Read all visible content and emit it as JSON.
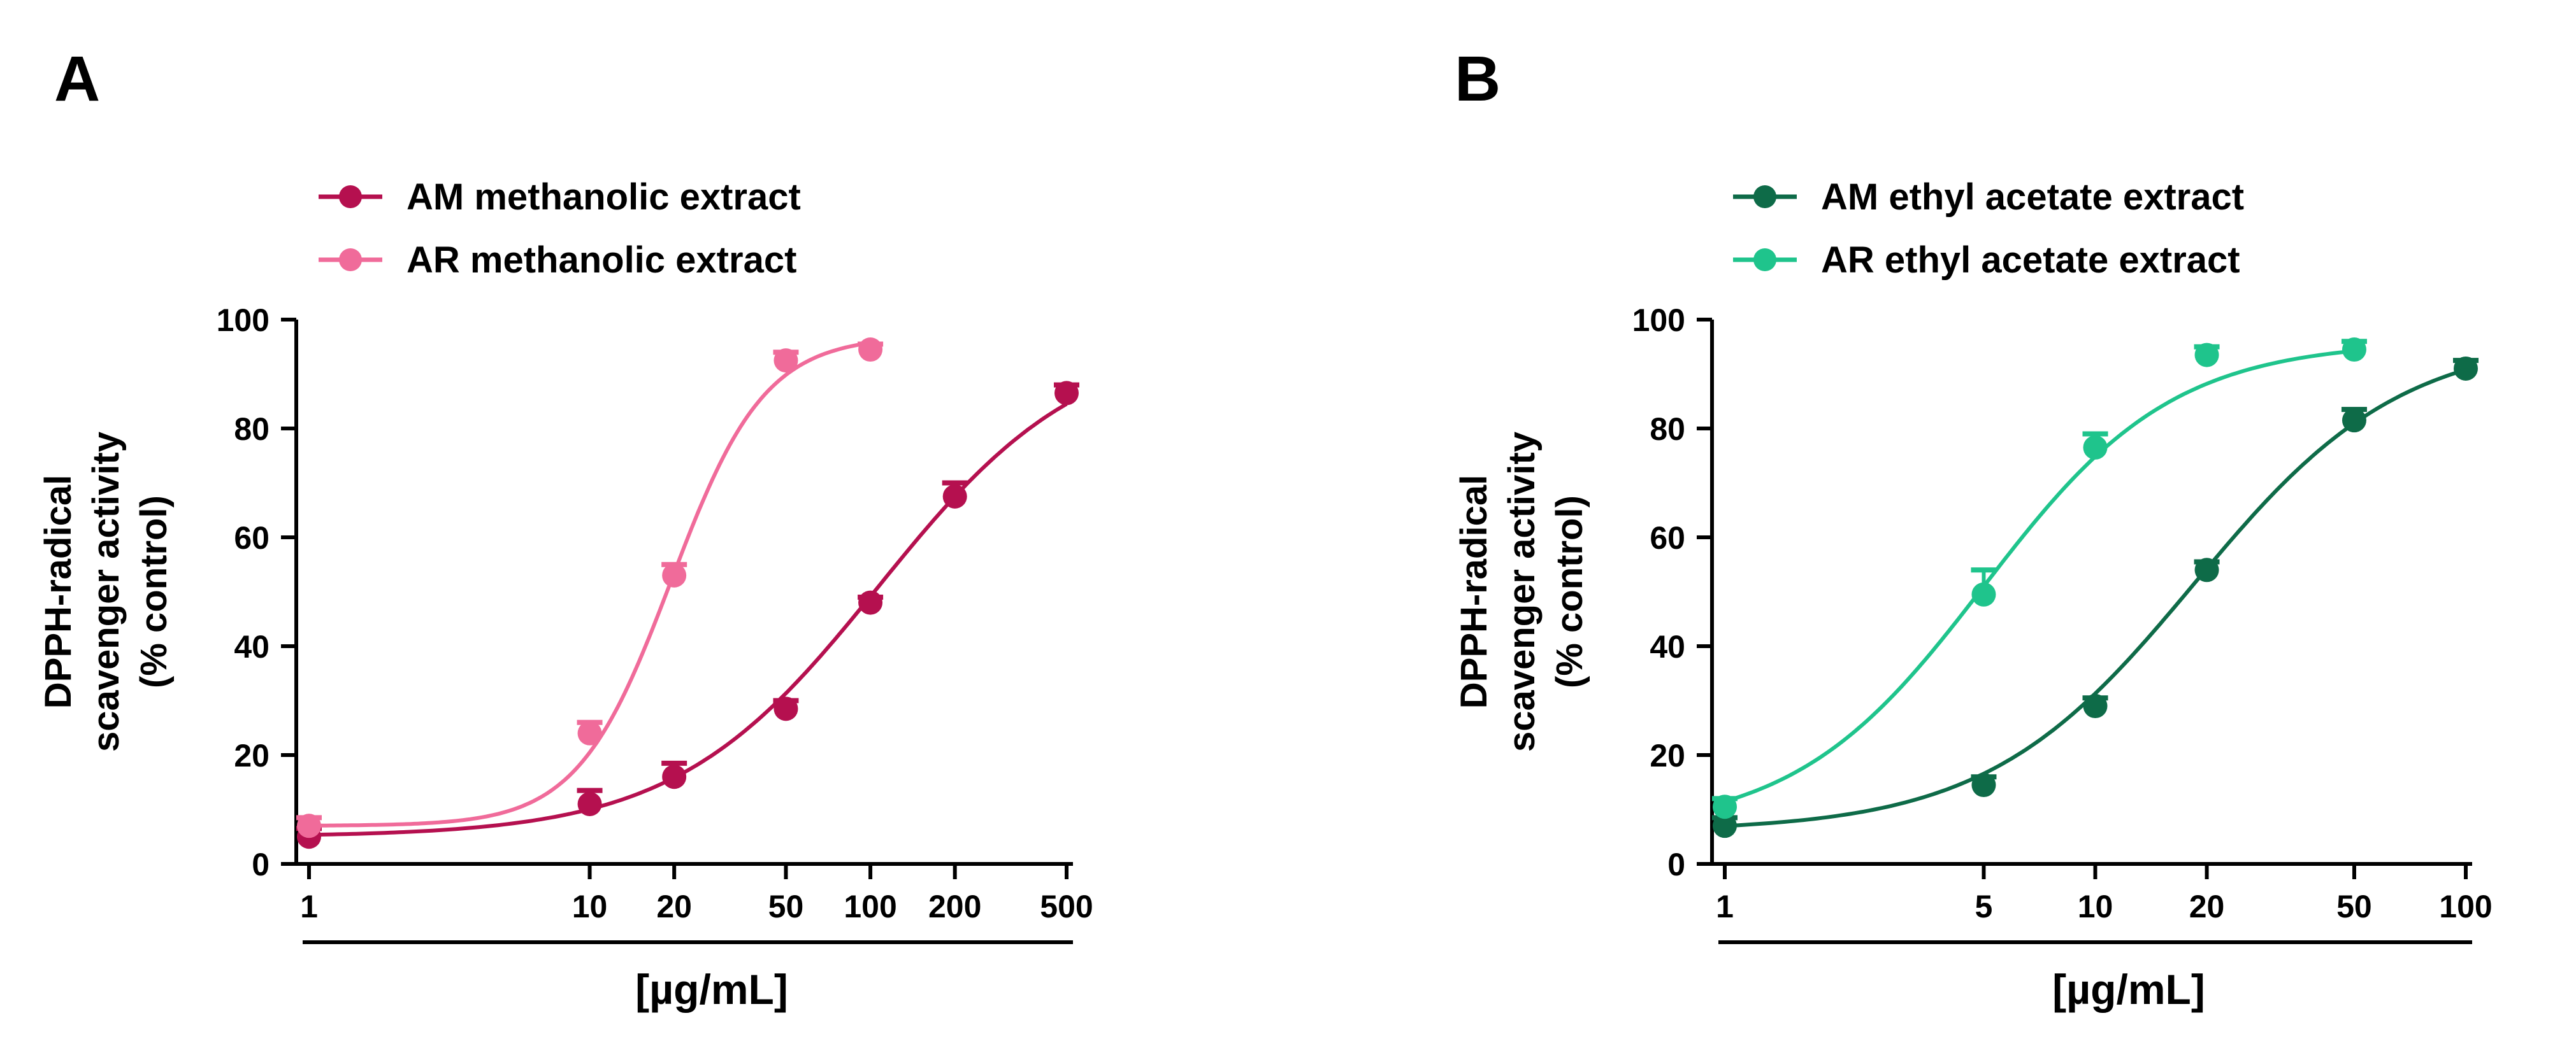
{
  "chart_data": [
    {
      "panel": "A",
      "type": "scatter",
      "xscale": "log",
      "xlim": [
        1,
        500
      ],
      "ylim": [
        0,
        100
      ],
      "xticks": [
        1,
        10,
        20,
        50,
        100,
        200,
        500
      ],
      "xtick_labels": [
        "1",
        "10",
        "20",
        "50",
        "100",
        "200",
        "500"
      ],
      "yticks": [
        0,
        20,
        40,
        60,
        80,
        100
      ],
      "ytick_labels": [
        "0",
        "20",
        "40",
        "60",
        "80",
        "100"
      ],
      "xlabel": "[µg/mL]",
      "ylabel": [
        "DPPH-radical",
        "scavenger activity",
        "(% control)"
      ],
      "legend_position": "top-left",
      "grid": false,
      "series": [
        {
          "name": "AM methanolic extract",
          "color": "#b5104f",
          "x": [
            1,
            10,
            20,
            50,
            100,
            200,
            500
          ],
          "y": [
            5,
            11,
            16,
            28.5,
            48,
            67.5,
            86.5
          ],
          "err": [
            1.5,
            2.5,
            2.5,
            1.5,
            1,
            2.5,
            1.5
          ],
          "fit": {
            "bottom": 5,
            "top": 97,
            "ec50": 107,
            "hill": 1.2
          }
        },
        {
          "name": "AR methanolic extract",
          "color": "#f06b9a",
          "x": [
            1,
            10,
            20,
            50,
            100
          ],
          "y": [
            7,
            24,
            53,
            92.5,
            94.5
          ],
          "err": [
            1.5,
            2,
            2,
            1.5,
            1
          ],
          "fit": {
            "bottom": 7,
            "top": 97,
            "ec50": 19.5,
            "hill": 2.6
          }
        }
      ]
    },
    {
      "panel": "B",
      "type": "scatter",
      "xscale": "log",
      "xlim": [
        1,
        100
      ],
      "ylim": [
        0,
        100
      ],
      "xticks": [
        1,
        5,
        10,
        20,
        50,
        100
      ],
      "xtick_labels": [
        "1",
        "5",
        "10",
        "20",
        "50",
        "100"
      ],
      "yticks": [
        0,
        20,
        40,
        60,
        80,
        100
      ],
      "ytick_labels": [
        "0",
        "20",
        "40",
        "60",
        "80",
        "100"
      ],
      "xlabel": "[µg/mL]",
      "ylabel": [
        "DPPH-radical",
        "scavenger activity",
        "(% control)"
      ],
      "legend_position": "top-left",
      "grid": false,
      "series": [
        {
          "name": "AM ethyl acetate extract",
          "color": "#0e6b48",
          "x": [
            1,
            5,
            10,
            20,
            50,
            100
          ],
          "y": [
            7,
            14.5,
            29,
            54,
            81.5,
            91
          ],
          "err": [
            1.5,
            1.5,
            1.5,
            1.5,
            2,
            1.5
          ],
          "fit": {
            "bottom": 6,
            "top": 97,
            "ec50": 18.5,
            "hill": 1.55
          }
        },
        {
          "name": "AR ethyl acetate extract",
          "color": "#1fc48c",
          "x": [
            1,
            5,
            10,
            20,
            50
          ],
          "y": [
            10.5,
            49.5,
            76.5,
            93.5,
            94.5
          ],
          "err": [
            1.5,
            4.5,
            2.5,
            1.5,
            1.5
          ],
          "fit": {
            "bottom": 6,
            "top": 96,
            "ec50": 5,
            "hill": 1.7
          }
        }
      ]
    }
  ]
}
